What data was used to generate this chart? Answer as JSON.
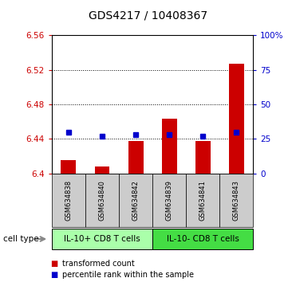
{
  "title": "GDS4217 / 10408367",
  "samples": [
    "GSM634838",
    "GSM634840",
    "GSM634842",
    "GSM634839",
    "GSM634841",
    "GSM634843"
  ],
  "bar_values": [
    6.415,
    6.408,
    6.438,
    6.463,
    6.438,
    6.527
  ],
  "percentile_ranks": [
    30,
    27,
    28,
    28,
    27,
    30
  ],
  "bar_bottom": 6.4,
  "ylim_left": [
    6.4,
    6.56
  ],
  "ylim_right": [
    0,
    100
  ],
  "yticks_left": [
    6.4,
    6.44,
    6.48,
    6.52,
    6.56
  ],
  "ytick_labels_left": [
    "6.4",
    "6.44",
    "6.48",
    "6.52",
    "6.56"
  ],
  "yticks_right": [
    0,
    25,
    50,
    75,
    100
  ],
  "ytick_labels_right": [
    "0",
    "25",
    "50",
    "75",
    "100%"
  ],
  "groups": [
    {
      "label": "IL-10+ CD8 T cells",
      "start": 0,
      "end": 3,
      "color": "#aaffaa"
    },
    {
      "label": "IL-10- CD8 T cells",
      "start": 3,
      "end": 6,
      "color": "#44dd44"
    }
  ],
  "cell_type_label": "cell type",
  "bar_color": "#cc0000",
  "percentile_color": "#0000cc",
  "legend_items": [
    {
      "color": "#cc0000",
      "label": "transformed count"
    },
    {
      "color": "#0000cc",
      "label": "percentile rank within the sample"
    }
  ],
  "bar_width": 0.45,
  "background_color": "#ffffff",
  "panel_color": "#cccccc",
  "left_label_color": "#cc0000",
  "right_label_color": "#0000cc"
}
